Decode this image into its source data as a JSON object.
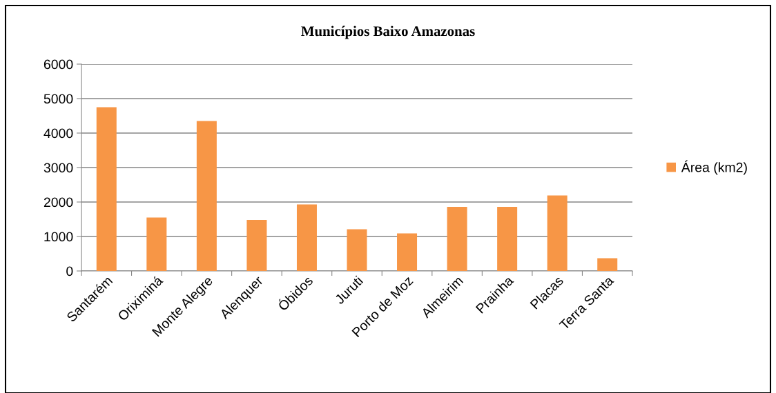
{
  "chart_data": {
    "type": "bar",
    "title": "Municípios Baixo Amazonas",
    "categories": [
      "Santarém",
      "Oriximiná",
      "Monte Alegre",
      "Alenquer",
      "Óbidos",
      "Juruti",
      "Porto de Moz",
      "Almeirim",
      "Prainha",
      "Placas",
      "Terra Santa"
    ],
    "series": [
      {
        "name": "Área (km2)",
        "color": "#f79646",
        "values": [
          4750,
          1550,
          4350,
          1480,
          1930,
          1210,
          1090,
          1860,
          1860,
          2190,
          370
        ]
      }
    ],
    "ylim": [
      0,
      6000
    ],
    "yticks": [
      0,
      1000,
      2000,
      3000,
      4000,
      5000,
      6000
    ],
    "grid": "y",
    "legend": "right"
  }
}
